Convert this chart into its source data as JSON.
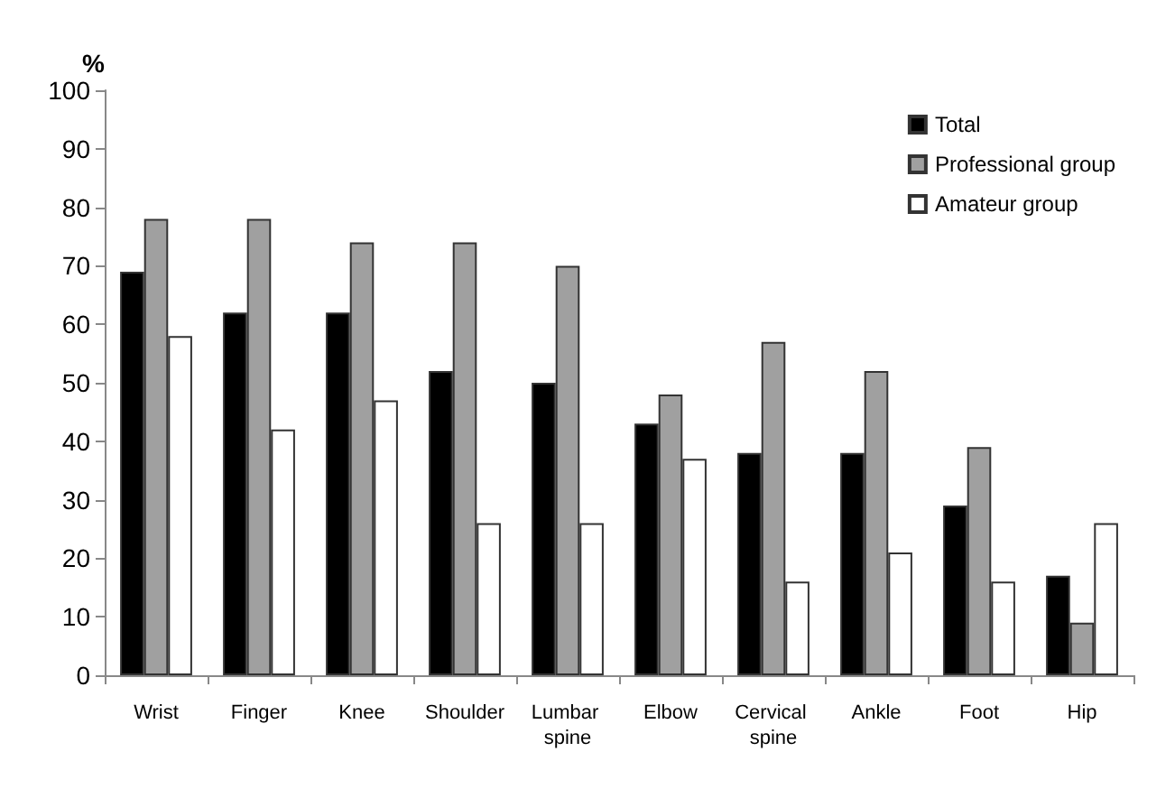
{
  "chart_data": {
    "type": "bar",
    "ylabel": "%",
    "categories": [
      "Wrist",
      "Finger",
      "Knee",
      "Shoulder",
      "Lumbar spine",
      "Elbow",
      "Cervical spine",
      "Ankle",
      "Foot",
      "Hip"
    ],
    "series": [
      {
        "name": "Total",
        "color": "#000000",
        "values": [
          69,
          62,
          62,
          52,
          50,
          43,
          38,
          38,
          29,
          17
        ]
      },
      {
        "name": "Professional group",
        "color": "#a0a0a0",
        "values": [
          78,
          78,
          74,
          74,
          70,
          48,
          57,
          52,
          39,
          9
        ]
      },
      {
        "name": "Amateur group",
        "color": "#ffffff",
        "values": [
          58,
          42,
          47,
          26,
          26,
          37,
          16,
          21,
          16,
          26
        ]
      }
    ],
    "ylim": [
      0,
      100
    ],
    "yticks": [
      0,
      10,
      20,
      30,
      40,
      50,
      60,
      70,
      80,
      90,
      100
    ],
    "grid": false,
    "legend": "top right"
  }
}
